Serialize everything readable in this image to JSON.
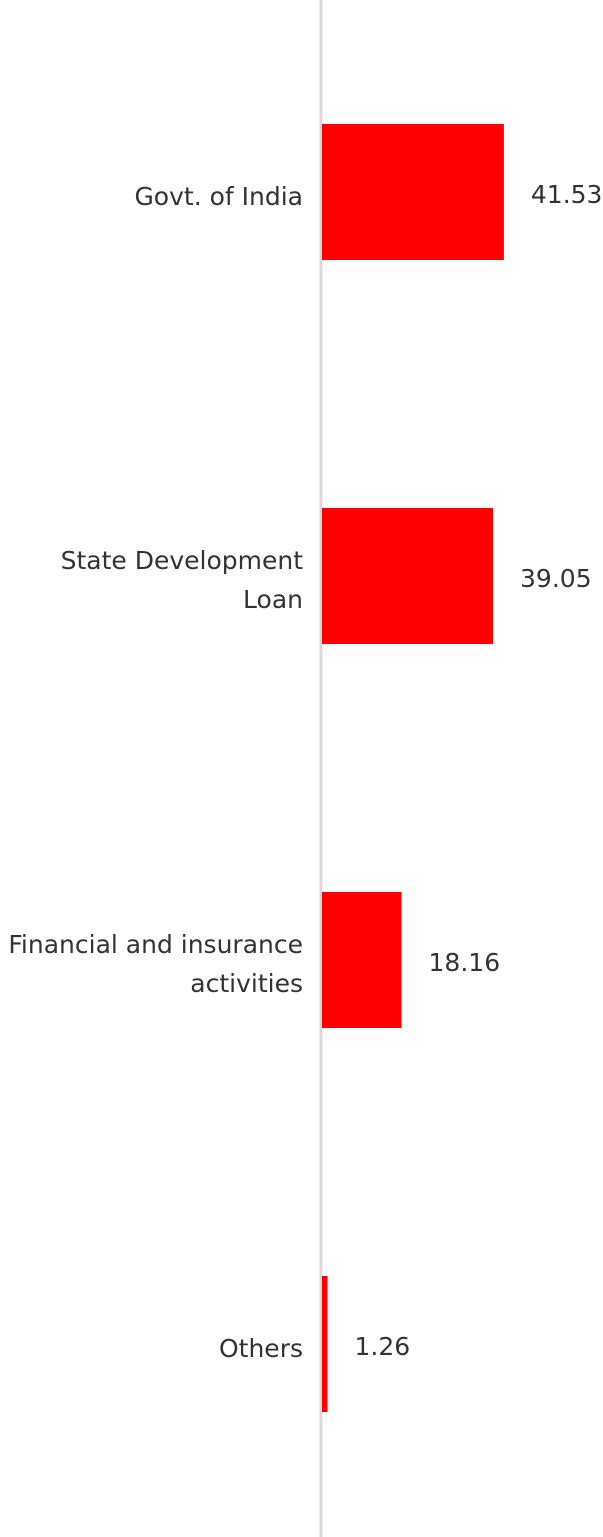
{
  "chart_data": {
    "type": "bar",
    "orientation": "horizontal",
    "categories": [
      "Govt. of India",
      "State Development Loan",
      "Financial and insurance activities",
      "Others"
    ],
    "values": [
      41.53,
      39.05,
      18.16,
      1.26
    ],
    "color": "#ff0000"
  }
}
